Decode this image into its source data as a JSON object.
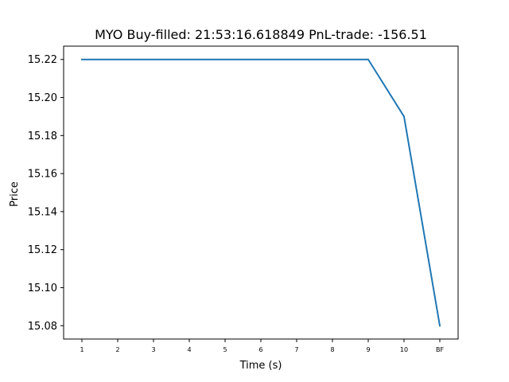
{
  "chart_data": {
    "type": "line",
    "title": "MYO  Buy-filled:  21:53:16.618849  PnL-trade:  -156.51",
    "xlabel": "Time (s)",
    "ylabel": "Price",
    "categories": [
      "1",
      "2",
      "3",
      "4",
      "5",
      "6",
      "7",
      "8",
      "9",
      "10",
      "BF"
    ],
    "series": [
      {
        "values": [
          15.22,
          15.22,
          15.22,
          15.22,
          15.22,
          15.22,
          15.22,
          15.22,
          15.22,
          15.19,
          15.08
        ],
        "color": "#1f77b4"
      }
    ],
    "yticks": [
      "15.08",
      "15.10",
      "15.12",
      "15.14",
      "15.16",
      "15.18",
      "15.20",
      "15.22"
    ],
    "ylim": [
      15.073,
      15.227
    ],
    "grid": false,
    "legend": "none"
  }
}
